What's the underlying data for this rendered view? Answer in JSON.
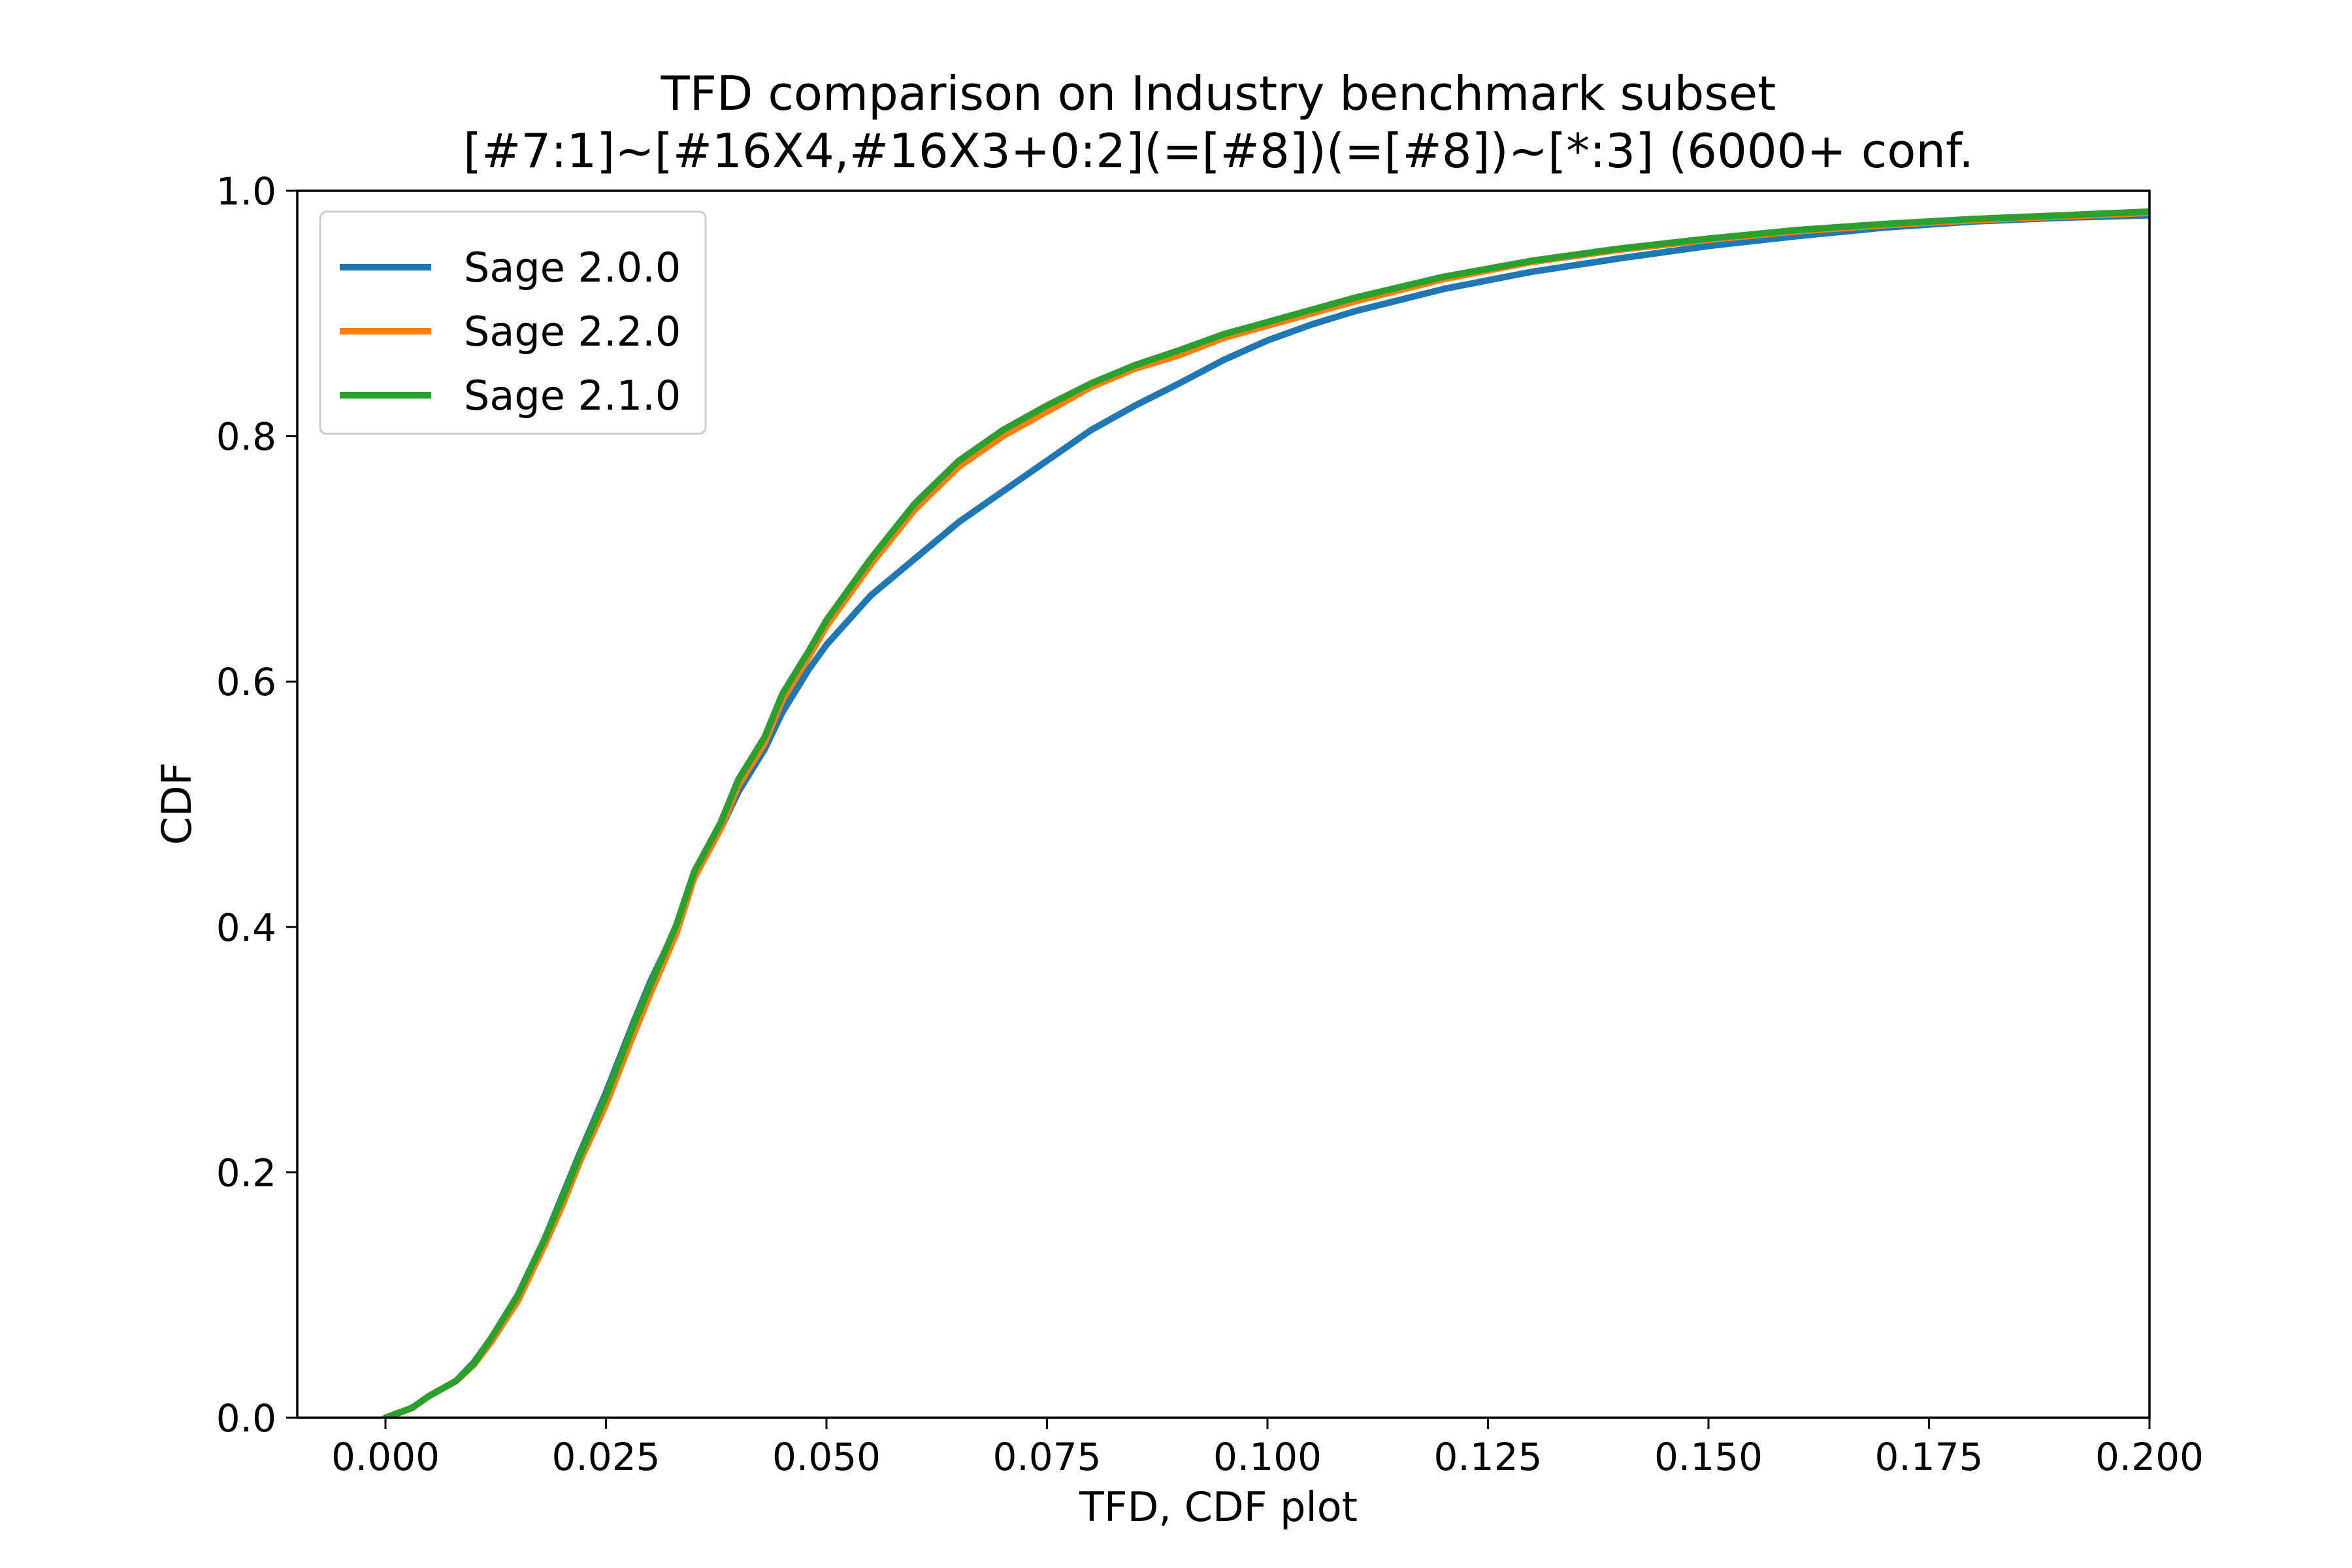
{
  "chart_data": {
    "type": "line",
    "title": "TFD comparison on Industry benchmark subset",
    "subtitle": "[#7:1]~[#16X4,#16X3+0:2](=[#8])(=[#8])~[*:3] (6000+ conf.",
    "xlabel": "TFD, CDF plot",
    "ylabel": "CDF",
    "xlim": [
      -0.01,
      0.2
    ],
    "ylim": [
      0.0,
      1.0
    ],
    "x_ticks": [
      "0.000",
      "0.025",
      "0.050",
      "0.075",
      "0.100",
      "0.125",
      "0.150",
      "0.175",
      "0.200"
    ],
    "y_ticks": [
      "0.0",
      "0.2",
      "0.4",
      "0.6",
      "0.8",
      "1.0"
    ],
    "grid": false,
    "legend_position": "top-left",
    "series": [
      {
        "name": "Sage 2.0.0",
        "color": "#1f77b4",
        "x": [
          0.0,
          0.003,
          0.005,
          0.008,
          0.01,
          0.012,
          0.015,
          0.018,
          0.02,
          0.022,
          0.025,
          0.028,
          0.03,
          0.033,
          0.035,
          0.038,
          0.04,
          0.043,
          0.045,
          0.048,
          0.05,
          0.055,
          0.06,
          0.065,
          0.07,
          0.075,
          0.08,
          0.085,
          0.09,
          0.095,
          0.1,
          0.105,
          0.11,
          0.12,
          0.13,
          0.14,
          0.15,
          0.16,
          0.17,
          0.18,
          0.19,
          0.2
        ],
        "y": [
          0.0,
          0.008,
          0.018,
          0.03,
          0.045,
          0.065,
          0.1,
          0.145,
          0.18,
          0.215,
          0.265,
          0.32,
          0.355,
          0.4,
          0.44,
          0.48,
          0.51,
          0.545,
          0.575,
          0.61,
          0.63,
          0.67,
          0.7,
          0.73,
          0.755,
          0.78,
          0.805,
          0.825,
          0.843,
          0.862,
          0.878,
          0.891,
          0.902,
          0.92,
          0.934,
          0.945,
          0.955,
          0.963,
          0.97,
          0.975,
          0.978,
          0.98
        ]
      },
      {
        "name": "Sage 2.2.0",
        "color": "#ff7f0e",
        "x": [
          0.0,
          0.003,
          0.005,
          0.008,
          0.01,
          0.012,
          0.015,
          0.018,
          0.02,
          0.022,
          0.025,
          0.028,
          0.03,
          0.033,
          0.035,
          0.038,
          0.04,
          0.043,
          0.045,
          0.048,
          0.05,
          0.055,
          0.06,
          0.065,
          0.07,
          0.075,
          0.08,
          0.085,
          0.09,
          0.095,
          0.1,
          0.105,
          0.11,
          0.12,
          0.13,
          0.14,
          0.15,
          0.16,
          0.17,
          0.18,
          0.19,
          0.2
        ],
        "y": [
          0.0,
          0.008,
          0.018,
          0.03,
          0.043,
          0.062,
          0.095,
          0.14,
          0.172,
          0.208,
          0.255,
          0.31,
          0.345,
          0.395,
          0.44,
          0.48,
          0.515,
          0.55,
          0.585,
          0.62,
          0.645,
          0.695,
          0.74,
          0.775,
          0.8,
          0.82,
          0.84,
          0.855,
          0.866,
          0.88,
          0.89,
          0.9,
          0.91,
          0.928,
          0.942,
          0.952,
          0.96,
          0.967,
          0.972,
          0.976,
          0.979,
          0.982
        ]
      },
      {
        "name": "Sage 2.1.0",
        "color": "#2ca02c",
        "x": [
          0.0,
          0.003,
          0.005,
          0.008,
          0.01,
          0.012,
          0.015,
          0.018,
          0.02,
          0.022,
          0.025,
          0.028,
          0.03,
          0.033,
          0.035,
          0.038,
          0.04,
          0.043,
          0.045,
          0.048,
          0.05,
          0.055,
          0.06,
          0.065,
          0.07,
          0.075,
          0.08,
          0.085,
          0.09,
          0.095,
          0.1,
          0.105,
          0.11,
          0.12,
          0.13,
          0.14,
          0.15,
          0.16,
          0.17,
          0.18,
          0.19,
          0.2
        ],
        "y": [
          0.0,
          0.008,
          0.018,
          0.03,
          0.044,
          0.065,
          0.1,
          0.145,
          0.178,
          0.213,
          0.262,
          0.318,
          0.352,
          0.402,
          0.445,
          0.485,
          0.52,
          0.555,
          0.59,
          0.625,
          0.65,
          0.7,
          0.745,
          0.78,
          0.805,
          0.825,
          0.843,
          0.858,
          0.87,
          0.883,
          0.893,
          0.903,
          0.913,
          0.93,
          0.943,
          0.953,
          0.961,
          0.968,
          0.973,
          0.977,
          0.98,
          0.983
        ]
      }
    ]
  }
}
